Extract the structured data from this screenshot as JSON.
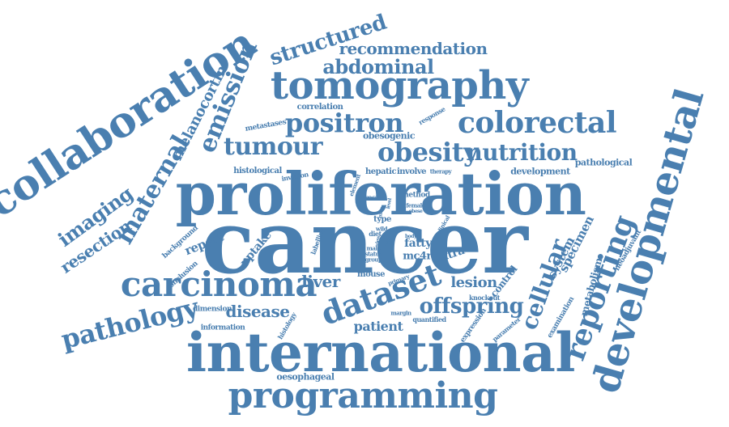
{
  "title": "",
  "color": "#4a7fb0",
  "words": [
    {
      "text": "cancer",
      "weight": 100
    },
    {
      "text": "proliferation",
      "weight": 78
    },
    {
      "text": "international",
      "weight": 72
    },
    {
      "text": "collaboration",
      "weight": 64
    },
    {
      "text": "developmental",
      "weight": 62
    },
    {
      "text": "tomography",
      "weight": 54
    },
    {
      "text": "programming",
      "weight": 52
    },
    {
      "text": "carcinoma",
      "weight": 50
    },
    {
      "text": "dataset",
      "weight": 46
    },
    {
      "text": "reporting",
      "weight": 44
    },
    {
      "text": "colorectal",
      "weight": 40
    },
    {
      "text": "positron",
      "weight": 38
    },
    {
      "text": "obesity",
      "weight": 38
    },
    {
      "text": "pathology",
      "weight": 38
    },
    {
      "text": "tumour",
      "weight": 36
    },
    {
      "text": "emission",
      "weight": 36
    },
    {
      "text": "maternal",
      "weight": 36
    },
    {
      "text": "cellular",
      "weight": 34
    },
    {
      "text": "nutrition",
      "weight": 34
    },
    {
      "text": "offspring",
      "weight": 32
    },
    {
      "text": "structured",
      "weight": 30
    },
    {
      "text": "abdominal",
      "weight": 28
    },
    {
      "text": "imaging",
      "weight": 28
    },
    {
      "text": "recommendation",
      "weight": 26
    },
    {
      "text": "resection",
      "weight": 26
    },
    {
      "text": "liver",
      "weight": 26
    },
    {
      "text": "disease",
      "weight": 24
    },
    {
      "text": "lesion",
      "weight": 22
    },
    {
      "text": "melanocortin",
      "weight": 22
    },
    {
      "text": "patient",
      "weight": 20
    },
    {
      "text": "system",
      "weight": 18
    },
    {
      "text": "specimen",
      "weight": 18
    },
    {
      "text": "report",
      "weight": 18
    },
    {
      "text": "fatty",
      "weight": 16
    },
    {
      "text": "uptake",
      "weight": 16
    },
    {
      "text": "intra",
      "weight": 16
    },
    {
      "text": "mc4r",
      "weight": 14
    },
    {
      "text": "control",
      "weight": 14
    },
    {
      "text": "metabolism",
      "weight": 14
    },
    {
      "text": "pathological",
      "weight": 13
    },
    {
      "text": "development",
      "weight": 13
    },
    {
      "text": "histological",
      "weight": 13
    },
    {
      "text": "hepatic",
      "weight": 13
    },
    {
      "text": "involve",
      "weight": 13
    },
    {
      "text": "obesogenic",
      "weight": 13
    },
    {
      "text": "correlation",
      "weight": 12
    },
    {
      "text": "oesophageal",
      "weight": 12
    },
    {
      "text": "expression",
      "weight": 12
    },
    {
      "text": "neoadjuvant",
      "weight": 12
    },
    {
      "text": "mouse",
      "weight": 12
    },
    {
      "text": "background",
      "weight": 11
    },
    {
      "text": "conclusion",
      "weight": 11
    },
    {
      "text": "type",
      "weight": 11
    },
    {
      "text": "examination",
      "weight": 11
    },
    {
      "text": "metastases",
      "weight": 11
    },
    {
      "text": "response",
      "weight": 10
    },
    {
      "text": "dimension",
      "weight": 10
    },
    {
      "text": "information",
      "weight": 10
    },
    {
      "text": "invasion",
      "weight": 10
    },
    {
      "text": "result",
      "weight": 10
    },
    {
      "text": "method",
      "weight": 10
    },
    {
      "text": "quantified",
      "weight": 10
    },
    {
      "text": "parameter",
      "weight": 10
    },
    {
      "text": "knockout",
      "weight": 10
    },
    {
      "text": "labelling",
      "weight": 9
    },
    {
      "text": "histology",
      "weight": 9
    },
    {
      "text": "margin",
      "weight": 9
    },
    {
      "text": "therapy",
      "weight": 9
    },
    {
      "text": "primary",
      "weight": 9
    },
    {
      "text": "female",
      "weight": 8
    },
    {
      "text": "element",
      "weight": 8
    },
    {
      "text": "diet",
      "weight": 8
    },
    {
      "text": "clinical",
      "weight": 8
    },
    {
      "text": "wild",
      "weight": 8
    },
    {
      "text": "male",
      "weight": 8
    },
    {
      "text": "status",
      "weight": 8
    },
    {
      "text": "group",
      "weight": 8
    },
    {
      "text": "obese",
      "weight": 7
    },
    {
      "text": "mice",
      "weight": 7
    },
    {
      "text": "level",
      "weight": 7
    },
    {
      "text": "lean",
      "weight": 7
    },
    {
      "text": "view",
      "weight": 7
    },
    {
      "text": "body",
      "weight": 7
    }
  ]
}
